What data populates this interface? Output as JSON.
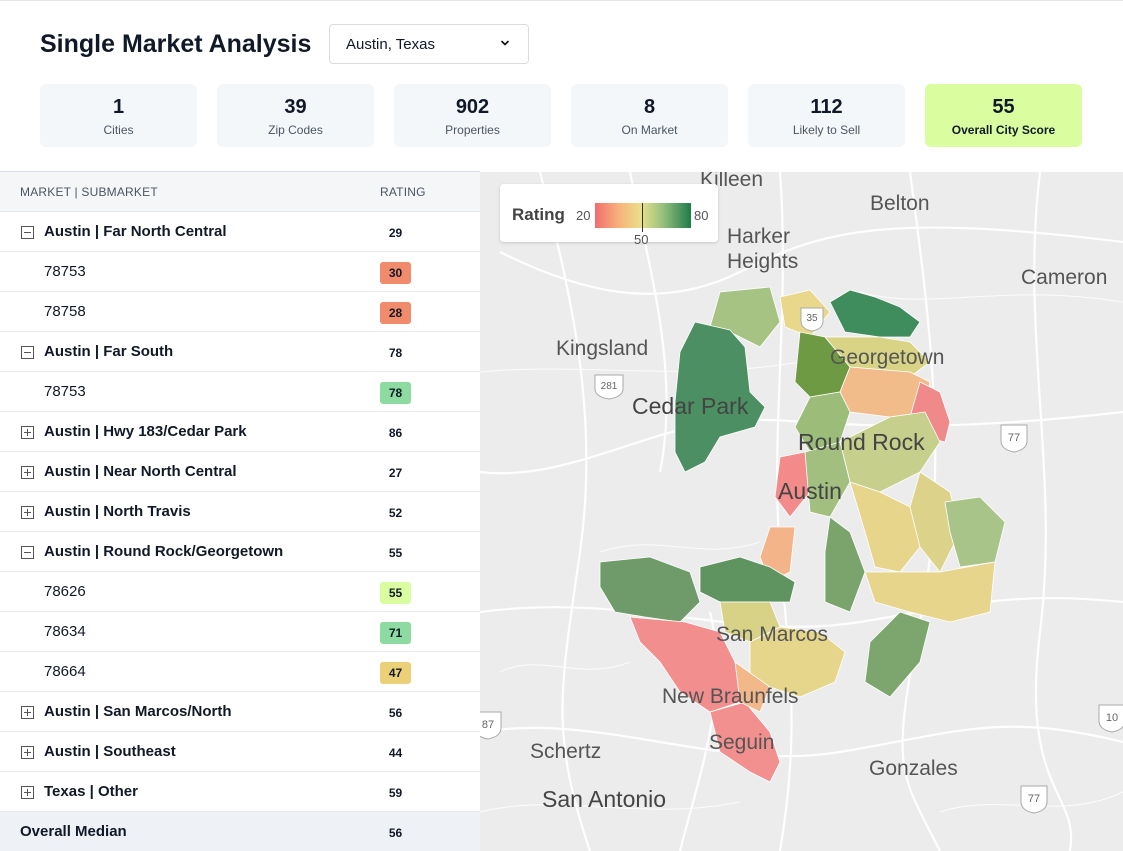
{
  "header": {
    "title": "Single Market Analysis",
    "location_select": {
      "value": "Austin, Texas",
      "icon": "chevron-down-icon"
    }
  },
  "stats": [
    {
      "value": "1",
      "label": "Cities"
    },
    {
      "value": "39",
      "label": "Zip Codes"
    },
    {
      "value": "902",
      "label": "Properties"
    },
    {
      "value": "8",
      "label": "On Market"
    },
    {
      "value": "112",
      "label": "Likely to Sell"
    },
    {
      "value": "55",
      "label": "Overall City Score",
      "highlight_color": "#d9fd9f"
    }
  ],
  "table": {
    "columns": {
      "market": "MARKET | SUBMARKET",
      "rating": "RATING"
    },
    "rows": [
      {
        "kind": "parent",
        "expanded": true,
        "name": "Austin | Far North Central",
        "rating": "29"
      },
      {
        "kind": "child",
        "name": "78753",
        "rating": "30",
        "color": "#f08b6c"
      },
      {
        "kind": "child",
        "name": "78758",
        "rating": "28",
        "color": "#f08b6c"
      },
      {
        "kind": "parent",
        "expanded": true,
        "name": "Austin | Far South",
        "rating": "78"
      },
      {
        "kind": "child",
        "name": "78753",
        "rating": "78",
        "color": "#8ddba0"
      },
      {
        "kind": "parent",
        "expanded": false,
        "name": "Austin | Hwy 183/Cedar Park",
        "rating": "86"
      },
      {
        "kind": "parent",
        "expanded": false,
        "name": "Austin | Near North Central",
        "rating": "27"
      },
      {
        "kind": "parent",
        "expanded": false,
        "name": "Austin | North Travis",
        "rating": "52"
      },
      {
        "kind": "parent",
        "expanded": true,
        "name": "Austin | Round Rock/Georgetown",
        "rating": "55"
      },
      {
        "kind": "child",
        "name": "78626",
        "rating": "55",
        "color": "#d9fd9f"
      },
      {
        "kind": "child",
        "name": "78634",
        "rating": "71",
        "color": "#8ddba0"
      },
      {
        "kind": "child",
        "name": "78664",
        "rating": "47",
        "color": "#ecd078"
      },
      {
        "kind": "parent",
        "expanded": false,
        "name": "Austin | San Marcos/North",
        "rating": "56"
      },
      {
        "kind": "parent",
        "expanded": false,
        "name": "Austin | Southeast",
        "rating": "44"
      },
      {
        "kind": "parent",
        "expanded": false,
        "name": "Texas | Other",
        "rating": "59"
      }
    ],
    "footer": {
      "name": "Overall Median",
      "rating": "56"
    }
  },
  "map": {
    "legend": {
      "title": "Rating",
      "min": "20",
      "mid": "50",
      "max": "80"
    },
    "cities": [
      "Killeen",
      "Belton",
      "Harker Heights",
      "Cameron",
      "Kingsland",
      "Georgetown",
      "Cedar Park",
      "Round Rock",
      "Austin",
      "San Marcos",
      "New Braunfels",
      "Seguin",
      "Schertz",
      "San Antonio",
      "Gonzales"
    ],
    "shields": [
      "35",
      "281",
      "77",
      "87",
      "10",
      "77"
    ]
  }
}
